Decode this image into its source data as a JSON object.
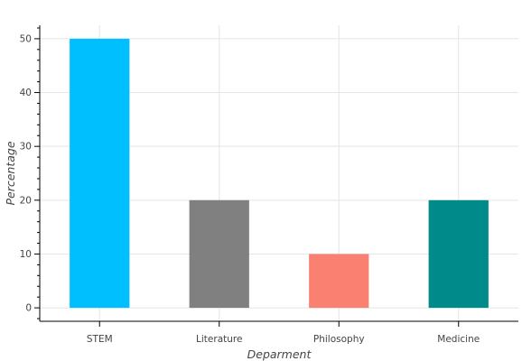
{
  "chart_data": {
    "type": "bar",
    "title": "",
    "xlabel": "Deparment",
    "ylabel": "Percentage",
    "categories": [
      "STEM",
      "Literature",
      "Philosophy",
      "Medicine"
    ],
    "values": [
      50,
      20,
      10,
      20
    ],
    "colors": [
      "#00bfff",
      "#808080",
      "#fa8072",
      "#008b8b"
    ],
    "ylim": [
      -2.5,
      52.5
    ],
    "yticks": [
      0,
      10,
      20,
      30,
      40,
      50
    ],
    "grid": true,
    "legend": "none"
  }
}
